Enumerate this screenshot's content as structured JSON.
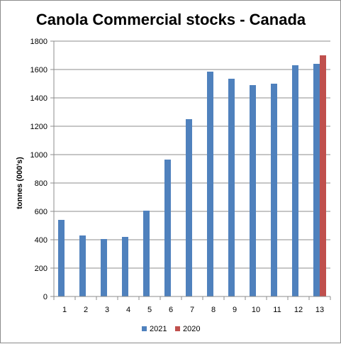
{
  "chart_data": {
    "type": "bar",
    "title": "Canola Commercial stocks - Canada",
    "xlabel": "",
    "ylabel": "tonnes (000's)",
    "ylim": [
      0,
      1800
    ],
    "ytick_step": 200,
    "grid": true,
    "legend_position": "bottom",
    "categories": [
      "1",
      "2",
      "3",
      "4",
      "5",
      "6",
      "7",
      "8",
      "9",
      "10",
      "11",
      "12",
      "13"
    ],
    "series": [
      {
        "name": "2021",
        "color": "#4f81bd",
        "values": [
          540,
          430,
          405,
          420,
          605,
          965,
          1250,
          1585,
          1535,
          1490,
          1500,
          1630,
          1640
        ]
      },
      {
        "name": "2020",
        "color": "#c0504d",
        "values": [
          null,
          null,
          null,
          null,
          null,
          null,
          null,
          null,
          null,
          null,
          null,
          null,
          1700
        ]
      }
    ]
  }
}
